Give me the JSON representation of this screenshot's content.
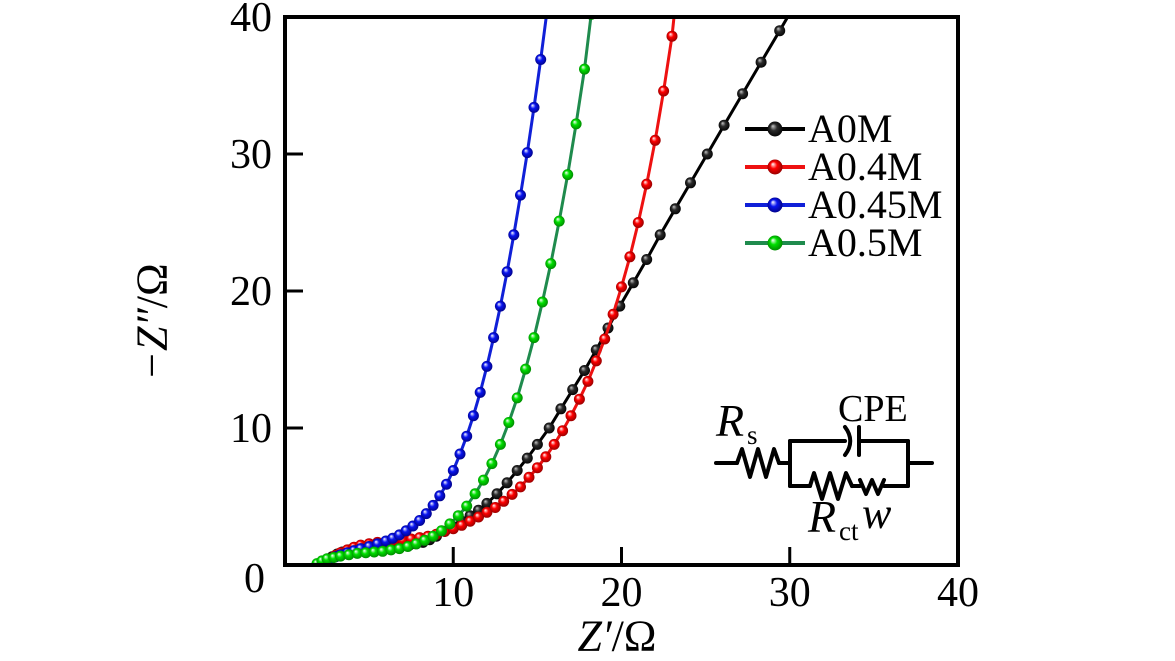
{
  "figure": {
    "background": "#ffffff",
    "axis_color": "#000000",
    "description_visible_elements": "Nyquist impedance plot with four series and equivalent circuit inset"
  },
  "chart_data": {
    "type": "line",
    "variant": "nyquist-eis-scatter-line",
    "title": "",
    "xlabel_italic": "Z′",
    "xlabel_unit": "/Ω",
    "ylabel_italic": "−Z″",
    "ylabel_unit": "/Ω",
    "xlim": [
      0,
      40
    ],
    "ylim": [
      0,
      40
    ],
    "xtick_values": [
      10,
      20,
      30,
      40
    ],
    "xtick_labels": [
      "10",
      "20",
      "30",
      "40"
    ],
    "ytick_values": [
      0,
      10,
      20,
      30,
      40
    ],
    "ytick_labels": [
      "0",
      "10",
      "20",
      "30",
      "40"
    ],
    "grid": false,
    "legend_position": "upper-right-inside",
    "series": [
      {
        "name": "A0M",
        "line_color": "#000000",
        "marker_highlight": "#c8c8c8",
        "marker_color": "#2b2b2b",
        "marker_dark": "#000000",
        "points": [
          [
            2.2,
            0.15
          ],
          [
            2.5,
            0.4
          ],
          [
            2.8,
            0.6
          ],
          [
            3.1,
            0.8
          ],
          [
            3.4,
            0.95
          ],
          [
            3.8,
            1.1
          ],
          [
            4.2,
            1.25
          ],
          [
            4.6,
            1.35
          ],
          [
            5.0,
            1.45
          ],
          [
            5.4,
            1.5
          ],
          [
            5.8,
            1.55
          ],
          [
            6.2,
            1.55
          ],
          [
            6.6,
            1.5
          ],
          [
            7.0,
            1.45
          ],
          [
            7.4,
            1.45
          ],
          [
            7.8,
            1.55
          ],
          [
            8.2,
            1.65
          ],
          [
            8.6,
            1.85
          ],
          [
            9.0,
            2.1
          ],
          [
            9.5,
            2.45
          ],
          [
            10.0,
            2.8
          ],
          [
            10.5,
            3.2
          ],
          [
            11.0,
            3.6
          ],
          [
            11.5,
            4.0
          ],
          [
            12.0,
            4.5
          ],
          [
            12.6,
            5.2
          ],
          [
            13.2,
            6.0
          ],
          [
            13.8,
            6.9
          ],
          [
            14.4,
            7.8
          ],
          [
            15.0,
            8.8
          ],
          [
            15.7,
            10.0
          ],
          [
            16.4,
            11.4
          ],
          [
            17.1,
            12.8
          ],
          [
            17.8,
            14.2
          ],
          [
            18.5,
            15.7
          ],
          [
            19.2,
            17.3
          ],
          [
            19.9,
            18.9
          ],
          [
            20.7,
            20.6
          ],
          [
            21.5,
            22.3
          ],
          [
            22.3,
            24.1
          ],
          [
            23.2,
            26.0
          ],
          [
            24.1,
            27.9
          ],
          [
            25.1,
            30.0
          ],
          [
            26.1,
            32.1
          ],
          [
            27.2,
            34.4
          ],
          [
            28.3,
            36.7
          ],
          [
            29.4,
            39.0
          ],
          [
            30.3,
            40.9
          ]
        ]
      },
      {
        "name": "A0.4M",
        "line_color": "#ee1111",
        "marker_highlight": "#ffffff",
        "marker_color": "#ff0000",
        "marker_dark": "#8b0000",
        "points": [
          [
            2.4,
            0.15
          ],
          [
            2.7,
            0.45
          ],
          [
            3.0,
            0.7
          ],
          [
            3.3,
            0.9
          ],
          [
            3.7,
            1.1
          ],
          [
            4.1,
            1.3
          ],
          [
            4.5,
            1.45
          ],
          [
            5.0,
            1.55
          ],
          [
            5.5,
            1.65
          ],
          [
            6.0,
            1.7
          ],
          [
            6.5,
            1.75
          ],
          [
            7.0,
            1.8
          ],
          [
            7.5,
            1.9
          ],
          [
            8.0,
            2.0
          ],
          [
            8.5,
            2.1
          ],
          [
            9.0,
            2.25
          ],
          [
            9.5,
            2.45
          ],
          [
            10.0,
            2.65
          ],
          [
            10.5,
            2.9
          ],
          [
            11.0,
            3.2
          ],
          [
            11.5,
            3.5
          ],
          [
            12.0,
            3.85
          ],
          [
            12.5,
            4.2
          ],
          [
            13.0,
            4.65
          ],
          [
            13.5,
            5.15
          ],
          [
            14.0,
            5.7
          ],
          [
            14.5,
            6.4
          ],
          [
            15.0,
            7.1
          ],
          [
            15.5,
            7.9
          ],
          [
            16.0,
            8.8
          ],
          [
            16.5,
            9.8
          ],
          [
            17.0,
            10.9
          ],
          [
            17.5,
            12.1
          ],
          [
            18.0,
            13.4
          ],
          [
            18.5,
            14.9
          ],
          [
            19.0,
            16.5
          ],
          [
            19.5,
            18.3
          ],
          [
            20.0,
            20.3
          ],
          [
            20.5,
            22.5
          ],
          [
            21.0,
            25.0
          ],
          [
            21.5,
            27.8
          ],
          [
            22.0,
            31.0
          ],
          [
            22.5,
            34.6
          ],
          [
            23.0,
            38.6
          ],
          [
            23.2,
            40.9
          ]
        ]
      },
      {
        "name": "A0.45M",
        "line_color": "#1020d8",
        "marker_highlight": "#ffffff",
        "marker_color": "#0814f0",
        "marker_dark": "#00007f",
        "points": [
          [
            2.4,
            0.15
          ],
          [
            2.7,
            0.4
          ],
          [
            3.0,
            0.6
          ],
          [
            3.3,
            0.75
          ],
          [
            3.7,
            0.9
          ],
          [
            4.1,
            1.05
          ],
          [
            4.5,
            1.2
          ],
          [
            5.0,
            1.35
          ],
          [
            5.5,
            1.55
          ],
          [
            6.0,
            1.75
          ],
          [
            6.4,
            1.95
          ],
          [
            6.8,
            2.2
          ],
          [
            7.2,
            2.5
          ],
          [
            7.6,
            2.85
          ],
          [
            8.0,
            3.25
          ],
          [
            8.4,
            3.75
          ],
          [
            8.8,
            4.35
          ],
          [
            9.2,
            5.05
          ],
          [
            9.6,
            5.9
          ],
          [
            10.0,
            6.9
          ],
          [
            10.4,
            8.1
          ],
          [
            10.8,
            9.4
          ],
          [
            11.2,
            10.9
          ],
          [
            11.6,
            12.6
          ],
          [
            12.0,
            14.5
          ],
          [
            12.4,
            16.6
          ],
          [
            12.8,
            18.9
          ],
          [
            13.2,
            21.4
          ],
          [
            13.6,
            24.1
          ],
          [
            14.0,
            27.0
          ],
          [
            14.4,
            30.1
          ],
          [
            14.8,
            33.4
          ],
          [
            15.2,
            36.9
          ],
          [
            15.6,
            40.7
          ]
        ]
      },
      {
        "name": "A0.5M",
        "line_color": "#1f8b4d",
        "marker_highlight": "#ffffff",
        "marker_color": "#00e000",
        "marker_dark": "#008000",
        "points": [
          [
            1.9,
            0.1
          ],
          [
            2.2,
            0.3
          ],
          [
            2.5,
            0.45
          ],
          [
            2.9,
            0.55
          ],
          [
            3.3,
            0.65
          ],
          [
            3.8,
            0.75
          ],
          [
            4.3,
            0.85
          ],
          [
            4.8,
            0.9
          ],
          [
            5.3,
            0.95
          ],
          [
            5.8,
            1.0
          ],
          [
            6.3,
            1.1
          ],
          [
            6.8,
            1.2
          ],
          [
            7.3,
            1.35
          ],
          [
            7.8,
            1.55
          ],
          [
            8.3,
            1.8
          ],
          [
            8.8,
            2.1
          ],
          [
            9.3,
            2.5
          ],
          [
            9.8,
            3.0
          ],
          [
            10.3,
            3.6
          ],
          [
            10.8,
            4.3
          ],
          [
            11.3,
            5.2
          ],
          [
            11.8,
            6.2
          ],
          [
            12.3,
            7.4
          ],
          [
            12.8,
            8.8
          ],
          [
            13.3,
            10.4
          ],
          [
            13.8,
            12.2
          ],
          [
            14.3,
            14.3
          ],
          [
            14.8,
            16.6
          ],
          [
            15.3,
            19.2
          ],
          [
            15.8,
            22.0
          ],
          [
            16.3,
            25.1
          ],
          [
            16.8,
            28.5
          ],
          [
            17.3,
            32.2
          ],
          [
            17.8,
            36.2
          ],
          [
            18.2,
            40.2
          ]
        ]
      }
    ],
    "inset_circuit": {
      "rs_main": "R",
      "rs_sub": "s",
      "cpe": "CPE",
      "rct_main": "R",
      "rct_sub": "ct",
      "warburg": "w"
    }
  }
}
